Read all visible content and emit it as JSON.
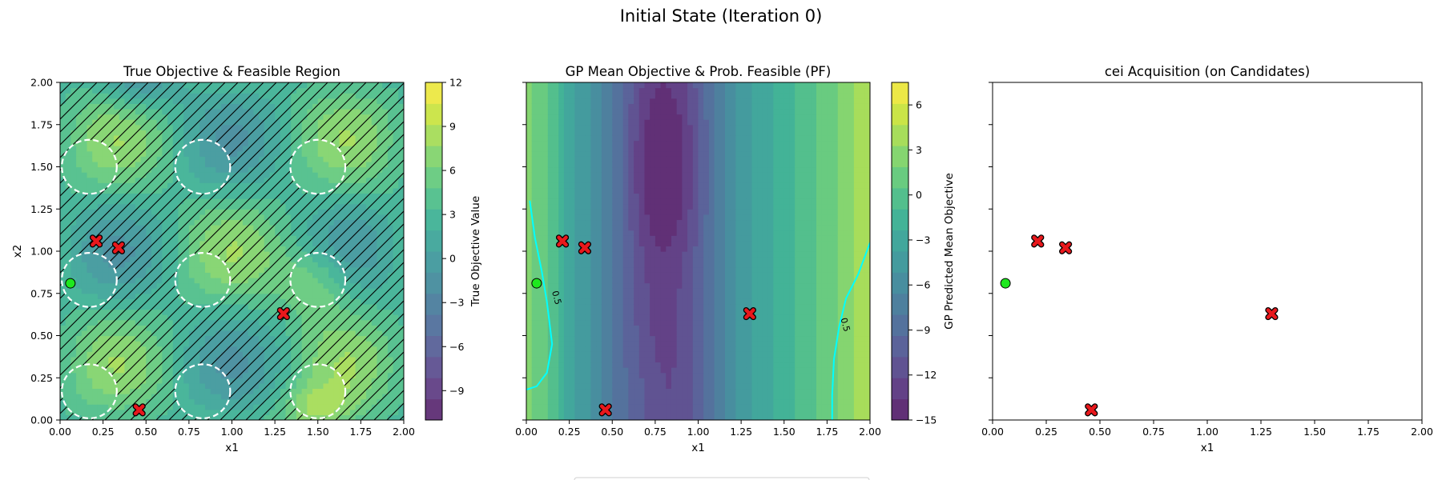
{
  "figure": {
    "title": "Initial State (Iteration 0)"
  },
  "chart_data": [
    {
      "type": "heatmap",
      "title": "True Objective & Feasible Region",
      "xlabel": "x1",
      "ylabel": "x2",
      "xlim": [
        0,
        2
      ],
      "ylim": [
        0,
        2
      ],
      "xticks": [
        "0.00",
        "0.25",
        "0.50",
        "0.75",
        "1.00",
        "1.25",
        "1.50",
        "1.75",
        "2.00"
      ],
      "yticks": [
        "0.00",
        "0.25",
        "0.50",
        "0.75",
        "1.00",
        "1.25",
        "1.50",
        "1.75",
        "2.00"
      ],
      "colorbar": {
        "label": "True Objective Value",
        "range": [
          -11,
          12
        ],
        "ticks": [
          "12",
          "9",
          "6",
          "3",
          "0",
          "−3",
          "−6",
          "−9"
        ],
        "colormap": "viridis"
      },
      "feasible_regions": {
        "shape": "circle",
        "centers": [
          [
            0.17,
            1.5
          ],
          [
            0.83,
            1.5
          ],
          [
            1.5,
            1.5
          ],
          [
            0.17,
            0.83
          ],
          [
            0.83,
            0.83
          ],
          [
            1.5,
            0.83
          ],
          [
            0.17,
            0.17
          ],
          [
            0.83,
            0.17
          ],
          [
            1.5,
            0.17
          ]
        ],
        "radius": 0.16,
        "infeasible_hatched": true
      },
      "observed_points": [
        [
          0.21,
          1.06
        ],
        [
          0.34,
          1.02
        ],
        [
          1.3,
          0.63
        ],
        [
          0.46,
          0.06
        ]
      ],
      "best_point": [
        0.06,
        0.81
      ],
      "legend": false,
      "grid": false
    },
    {
      "type": "heatmap",
      "title": "GP Mean Objective & Prob. Feasible (PF)",
      "xlabel": "x1",
      "xlim": [
        0,
        2
      ],
      "ylim": [
        0,
        2
      ],
      "xticks": [
        "0.00",
        "0.25",
        "0.50",
        "0.75",
        "1.00",
        "1.25",
        "1.50",
        "1.75",
        "2.00"
      ],
      "colorbar": {
        "label": "GP Predicted Mean Objective",
        "range": [
          -15,
          7.5
        ],
        "ticks": [
          "6",
          "3",
          "0",
          "−3",
          "−6",
          "−9",
          "−12",
          "−15"
        ],
        "colormap": "viridis"
      },
      "pf_contours": {
        "level": "0.5",
        "color": "#00ffff"
      },
      "observed_points": [
        [
          0.21,
          1.06
        ],
        [
          0.34,
          1.02
        ],
        [
          1.3,
          0.63
        ],
        [
          0.46,
          0.06
        ]
      ],
      "best_point": [
        0.06,
        0.81
      ],
      "legend": false,
      "grid": false
    },
    {
      "type": "scatter",
      "title": "cei Acquisition (on Candidates)",
      "xlabel": "x1",
      "xlim": [
        0,
        2
      ],
      "ylim": [
        0,
        2
      ],
      "xticks": [
        "0.00",
        "0.25",
        "0.50",
        "0.75",
        "1.00",
        "1.25",
        "1.50",
        "1.75",
        "2.00"
      ],
      "observed_points": [
        [
          0.21,
          1.06
        ],
        [
          0.34,
          1.02
        ],
        [
          1.3,
          0.63
        ],
        [
          0.46,
          0.06
        ]
      ],
      "best_point": [
        0.06,
        0.81
      ],
      "legend": false,
      "grid": false
    }
  ]
}
